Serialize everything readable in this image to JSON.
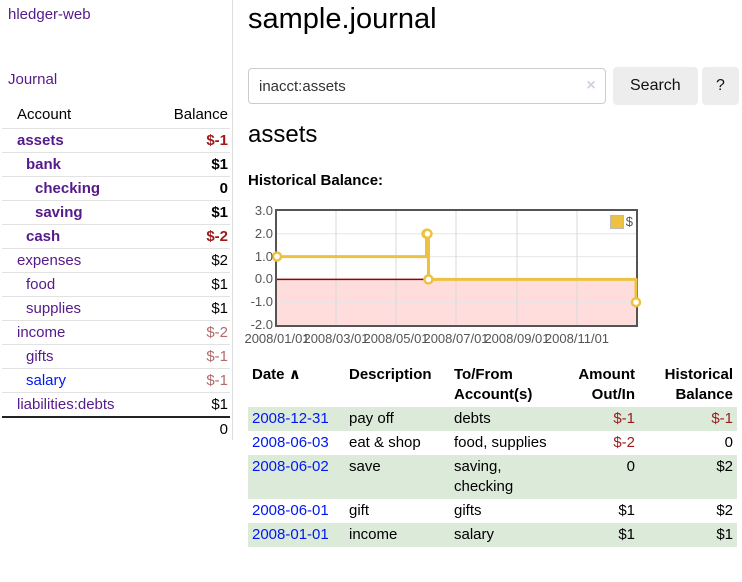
{
  "colors": {
    "link-purple": "#551a8b",
    "link-blue": "#0018ee",
    "neg-strong": "#9e1a1a",
    "neg-soft": "#b36a6a",
    "row-green": "#dcead9",
    "btn-bg": "#ededed",
    "chart-gold": "#edc240",
    "chart-pink": "#ffdddd",
    "chart-zero": "#990000",
    "chart-border": "#545454",
    "tick-text": "#545454"
  },
  "sidebar": {
    "brand": "hledger-web",
    "journal_link": "Journal",
    "accounts_table": {
      "headers": {
        "account": "Account",
        "balance": "Balance"
      },
      "rows": [
        {
          "name": "assets",
          "depth": 1,
          "bold": true,
          "link_color": "purple",
          "balance": "$-1",
          "balance_class": "neg-strong"
        },
        {
          "name": "bank",
          "depth": 2,
          "bold": true,
          "link_color": "purple",
          "balance": "$1",
          "balance_class": "pos"
        },
        {
          "name": "checking",
          "depth": 3,
          "bold": true,
          "link_color": "purple",
          "balance": "0",
          "balance_class": "pos"
        },
        {
          "name": "saving",
          "depth": 3,
          "bold": true,
          "link_color": "purple",
          "balance": "$1",
          "balance_class": "pos"
        },
        {
          "name": "cash",
          "depth": 2,
          "bold": true,
          "link_color": "purple",
          "balance": "$-2",
          "balance_class": "neg-strong"
        },
        {
          "name": "expenses",
          "depth": 1,
          "bold": false,
          "link_color": "purple",
          "balance": "$2",
          "balance_class": "pos"
        },
        {
          "name": "food",
          "depth": 2,
          "bold": false,
          "link_color": "purple",
          "balance": "$1",
          "balance_class": "pos"
        },
        {
          "name": "supplies",
          "depth": 2,
          "bold": false,
          "link_color": "purple",
          "balance": "$1",
          "balance_class": "pos"
        },
        {
          "name": "income",
          "depth": 1,
          "bold": false,
          "link_color": "purple",
          "balance": "$-2",
          "balance_class": "neg-soft"
        },
        {
          "name": "gifts",
          "depth": 2,
          "bold": false,
          "link_color": "purple",
          "balance": "$-1",
          "balance_class": "neg-soft"
        },
        {
          "name": "salary",
          "depth": 2,
          "bold": false,
          "link_color": "blue",
          "balance": "$-1",
          "balance_class": "neg-soft"
        },
        {
          "name": "liabilities:debts",
          "depth": 1,
          "bold": false,
          "link_color": "purple",
          "balance": "$1",
          "balance_class": "pos"
        }
      ],
      "total": "0"
    }
  },
  "main": {
    "title": "sample.journal",
    "search": {
      "value": "inacct:assets",
      "clear_icon": "×",
      "search_label": "Search",
      "help_label": "?"
    },
    "account_heading": "assets",
    "chart_label": "Historical Balance:"
  },
  "chart_data": {
    "type": "line",
    "step": true,
    "title": "Historical Balance",
    "series": [
      {
        "name": "$",
        "color": "#edc240",
        "points": [
          [
            "2008-01-01",
            1
          ],
          [
            "2008-06-01",
            2
          ],
          [
            "2008-06-02",
            2
          ],
          [
            "2008-06-03",
            0
          ],
          [
            "2008-12-31",
            -1
          ]
        ]
      }
    ],
    "ylim": [
      -2,
      3
    ],
    "yticks": [
      3.0,
      2.0,
      1.0,
      0.0,
      -1.0,
      -2.0
    ],
    "xticks": [
      "2008/01/01",
      "2008/03/01",
      "2008/05/01",
      "2008/07/01",
      "2008/09/01",
      "2008/11/01"
    ],
    "x_range": [
      "2008-01-01",
      "2008-12-31"
    ],
    "grid": true,
    "legend_position": "top-right",
    "negative_region_color": "#ffdddd",
    "zero_line_color": "#990000"
  },
  "register_table": {
    "headers": {
      "date": "Date",
      "sort_icon": "∧",
      "description": "Description",
      "accounts": "To/From Account(s)",
      "amount": "Amount Out/In",
      "balance": "Historical Balance"
    },
    "rows": [
      {
        "date": "2008-12-31",
        "description": "pay off",
        "accounts": "debts",
        "amount": "$-1",
        "amount_class": "neg",
        "balance": "$-1",
        "balance_class": "neg"
      },
      {
        "date": "2008-06-03",
        "description": "eat & shop",
        "accounts": "food, supplies",
        "amount": "$-2",
        "amount_class": "neg",
        "balance": "0",
        "balance_class": "pos"
      },
      {
        "date": "2008-06-02",
        "description": "save",
        "accounts": "saving, checking",
        "amount": "0",
        "amount_class": "pos",
        "balance": "$2",
        "balance_class": "pos"
      },
      {
        "date": "2008-06-01",
        "description": "gift",
        "accounts": "gifts",
        "amount": "$1",
        "amount_class": "pos",
        "balance": "$2",
        "balance_class": "pos"
      },
      {
        "date": "2008-01-01",
        "description": "income",
        "accounts": "salary",
        "amount": "$1",
        "amount_class": "pos",
        "balance": "$1",
        "balance_class": "pos"
      }
    ]
  }
}
